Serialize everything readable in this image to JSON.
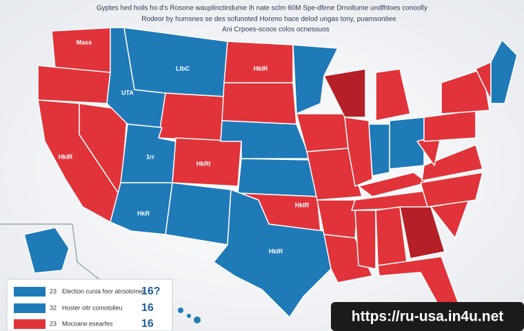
{
  "header": {
    "lines": [
      "Gyptes hed hoils ho d's Rosone wauplinctindume ih nate sclm 60M Spe-dfene Drnoltume undfhloes conoolly",
      "Rodeor by humsnes se des sofunoted Horeno hace delod ungas tony, puamsontiee",
      "Ani Crpoes-scoos colos ocnessuos"
    ]
  },
  "map": {
    "labels": [
      "Mass",
      "HkIR",
      "UTA",
      "LlbC",
      "1rr",
      "HkRI",
      "HkIR",
      "HkIR",
      "HkR",
      "HkIR"
    ]
  },
  "legend": {
    "rows": [
      {
        "number": "23",
        "label": "Election cunia foor atroolomen",
        "value": "16?"
      },
      {
        "number": "32",
        "label": "Hoster oltr comotolleu",
        "value": "16"
      },
      {
        "number": "23",
        "label": "Mocoarw esearfes",
        "value": "16"
      }
    ]
  },
  "watermark": "https://ru-usa.in4u.net"
}
